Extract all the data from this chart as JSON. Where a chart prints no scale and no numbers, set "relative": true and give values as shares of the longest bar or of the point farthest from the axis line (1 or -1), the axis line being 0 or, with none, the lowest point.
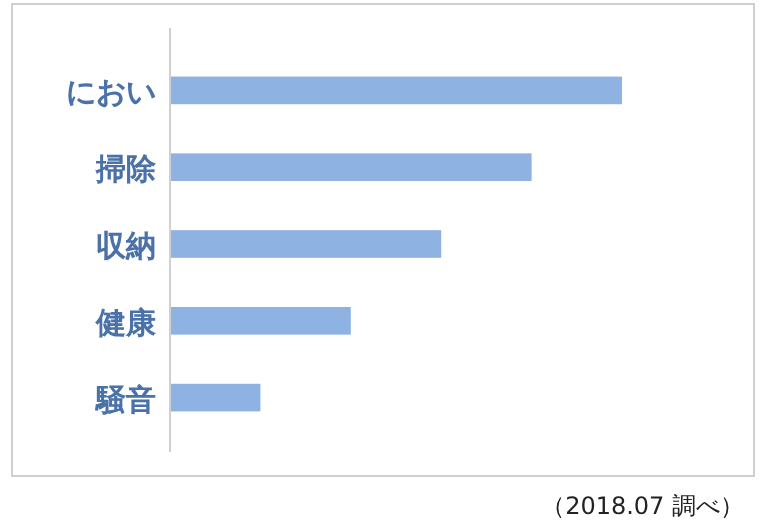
{
  "chart_data": {
    "type": "bar",
    "orientation": "horizontal",
    "relative": true,
    "categories": [
      "におい",
      "掃除",
      "収納",
      "健康",
      "騒音"
    ],
    "values": [
      1,
      0.8,
      0.6,
      0.4,
      0.2
    ],
    "color": "#8eb2e2",
    "annotations": [
      "（2018.07 調べ）"
    ]
  }
}
